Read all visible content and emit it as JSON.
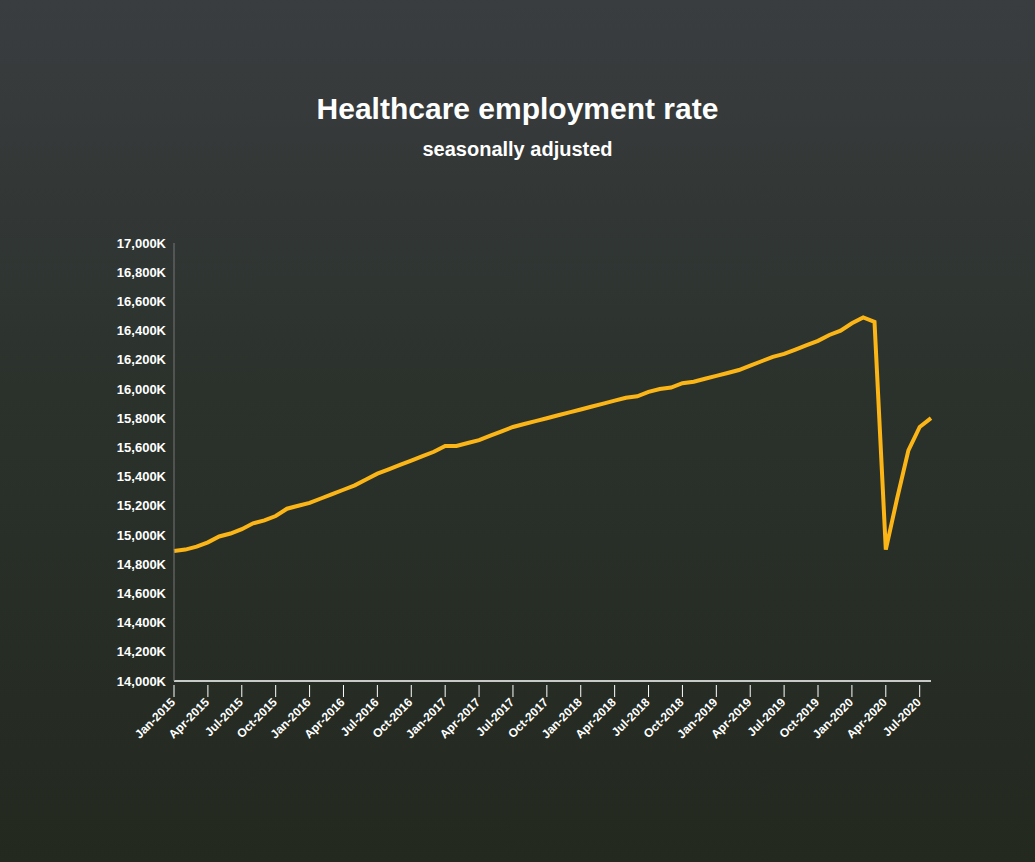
{
  "chart_data": {
    "type": "line",
    "title": "Healthcare employment rate",
    "subtitle": "seasonally adjusted",
    "categories": [
      "Jan-2015",
      null,
      null,
      "Apr-2015",
      null,
      null,
      "Jul-2015",
      null,
      null,
      "Oct-2015",
      null,
      null,
      "Jan-2016",
      null,
      null,
      "Apr-2016",
      null,
      null,
      "Jul-2016",
      null,
      null,
      "Oct-2016",
      null,
      null,
      "Jan-2017",
      null,
      null,
      "Apr-2017",
      null,
      null,
      "Jul-2017",
      null,
      null,
      "Oct-2017",
      null,
      null,
      "Jan-2018",
      null,
      null,
      "Apr-2018",
      null,
      null,
      "Jul-2018",
      null,
      null,
      "Oct-2018",
      null,
      null,
      "Jan-2019",
      null,
      null,
      "Apr-2019",
      null,
      null,
      "Jul-2019",
      null,
      null,
      "Oct-2019",
      null,
      null,
      "Jan-2020",
      null,
      null,
      "Apr-2020",
      null,
      null,
      "Jul-2020",
      null
    ],
    "values": [
      14890,
      14900,
      14920,
      14950,
      14990,
      15010,
      15040,
      15080,
      15100,
      15130,
      15180,
      15200,
      15220,
      15250,
      15280,
      15310,
      15340,
      15380,
      15420,
      15450,
      15480,
      15510,
      15540,
      15570,
      15610,
      15610,
      15630,
      15650,
      15680,
      15710,
      15740,
      15760,
      15780,
      15800,
      15820,
      15840,
      15860,
      15880,
      15900,
      15920,
      15940,
      15950,
      15980,
      16000,
      16010,
      16040,
      16050,
      16070,
      16090,
      16110,
      16130,
      16160,
      16190,
      16220,
      16240,
      16270,
      16300,
      16330,
      16370,
      16400,
      16450,
      16490,
      16460,
      14900,
      15250,
      15580,
      15740,
      15800
    ],
    "color": "#fbb516",
    "ylim": [
      14000,
      17000
    ],
    "yticks": [
      {
        "value": 14000,
        "label": "14,000K"
      },
      {
        "value": 14200,
        "label": "14,200K"
      },
      {
        "value": 14400,
        "label": "14,400K"
      },
      {
        "value": 14600,
        "label": "14,600K"
      },
      {
        "value": 14800,
        "label": "14,800K"
      },
      {
        "value": 15000,
        "label": "15,000K"
      },
      {
        "value": 15200,
        "label": "15,200K"
      },
      {
        "value": 15400,
        "label": "15,400K"
      },
      {
        "value": 15600,
        "label": "15,600K"
      },
      {
        "value": 15800,
        "label": "15,800K"
      },
      {
        "value": 16000,
        "label": "16,000K"
      },
      {
        "value": 16200,
        "label": "16,200K"
      },
      {
        "value": 16400,
        "label": "16,400K"
      },
      {
        "value": 16600,
        "label": "16,600K"
      },
      {
        "value": 16800,
        "label": "16,800K"
      },
      {
        "value": 17000,
        "label": "17,000K"
      }
    ],
    "grid": false
  }
}
